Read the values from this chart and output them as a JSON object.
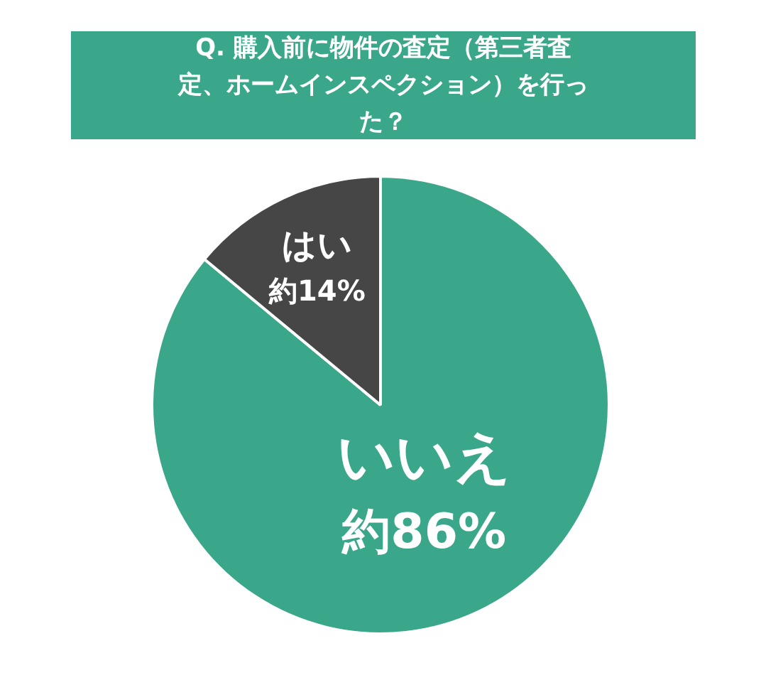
{
  "chart_data": {
    "type": "pie",
    "title": "Q. 購入前に物件の査定（第三者査定、ホームインスペクション）を行った？",
    "categories": [
      "いいえ",
      "はい"
    ],
    "values": [
      86,
      14
    ],
    "colors": [
      "#3aa78b",
      "#464646"
    ],
    "value_labels": [
      "約86%",
      "約14%"
    ],
    "legend": false
  }
}
